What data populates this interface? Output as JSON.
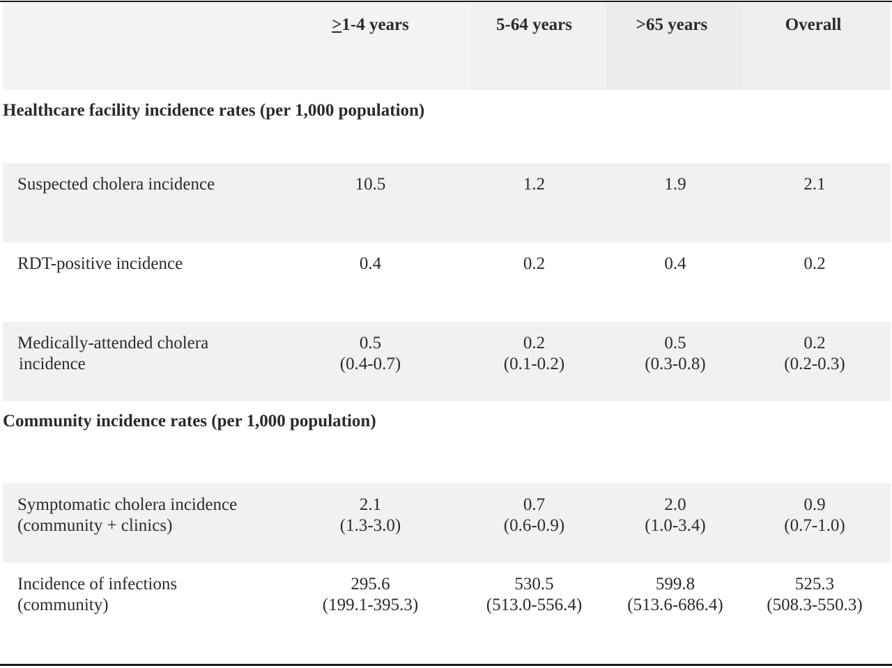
{
  "header": {
    "col1_symbol": ">",
    "col1_rest": "1-4 years",
    "col2": "5-64 years",
    "col3": ">65 years",
    "col4": "Overall"
  },
  "sections": {
    "healthcare": "Healthcare facility incidence rates (per 1,000 population)",
    "community": "Community incidence rates (per 1,000 population)"
  },
  "rows": {
    "suspected": {
      "label": "Suspected cholera incidence",
      "v1": "10.5",
      "v2": "1.2",
      "v3": "1.9",
      "v4": "2.1"
    },
    "rdt": {
      "label": "RDT-positive incidence",
      "v1": "0.4",
      "v2": "0.2",
      "v3": "0.4",
      "v4": "0.2"
    },
    "medical": {
      "label_line1": "Medically-attended cholera",
      "label_line2": "incidence",
      "v1": "0.5",
      "ci1": "(0.4-0.7)",
      "v2": "0.2",
      "ci2": "(0.1-0.2)",
      "v3": "0.5",
      "ci3": "(0.3-0.8)",
      "v4": "0.2",
      "ci4": "(0.2-0.3)"
    },
    "symptomatic": {
      "label_line1": "Symptomatic cholera incidence",
      "label_line2": "(community + clinics)",
      "v1": "2.1",
      "ci1": "(1.3-3.0)",
      "v2": "0.7",
      "ci2": "(0.6-0.9)",
      "v3": "2.0",
      "ci3": "(1.0-3.4)",
      "v4": "0.9",
      "ci4": "(0.7-1.0)"
    },
    "infections": {
      "label_line1": "Incidence of infections",
      "label_line2": "(community)",
      "v1": "295.6",
      "ci1": "(199.1-395.3)",
      "v2": "530.5",
      "ci2": "(513.0-556.4)",
      "v3": "599.8",
      "ci3": "(513.6-686.4)",
      "v4": "525.3",
      "ci4": "(508.3-550.3)"
    }
  },
  "colors": {
    "shade": "#f1f1f1",
    "text": "#2b2b2b",
    "rule": "#1a1a1a"
  }
}
